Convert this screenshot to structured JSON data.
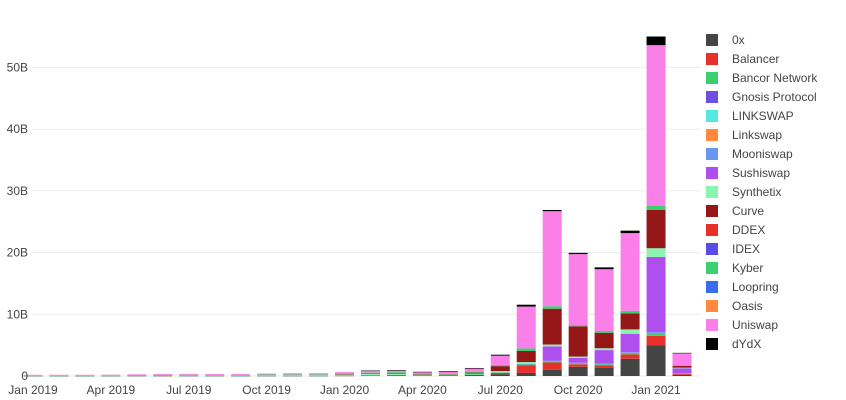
{
  "chart_data": {
    "type": "bar",
    "stacked": true,
    "title": "",
    "xlabel": "",
    "ylabel": "",
    "ylim": [
      0,
      58
    ],
    "y_unit": "B",
    "yticks": [
      0,
      10,
      20,
      30,
      40,
      50
    ],
    "ytick_labels": [
      "0",
      "10B",
      "20B",
      "30B",
      "40B",
      "50B"
    ],
    "xtick_labels": [
      {
        "category": "2019-01",
        "label": "Jan 2019"
      },
      {
        "category": "2019-04",
        "label": "Apr 2019"
      },
      {
        "category": "2019-07",
        "label": "Jul 2019"
      },
      {
        "category": "2019-10",
        "label": "Oct 2019"
      },
      {
        "category": "2020-01",
        "label": "Jan 2020"
      },
      {
        "category": "2020-04",
        "label": "Apr 2020"
      },
      {
        "category": "2020-07",
        "label": "Jul 2020"
      },
      {
        "category": "2020-10",
        "label": "Oct 2020"
      },
      {
        "category": "2021-01",
        "label": "Jan 2021"
      }
    ],
    "grid": true,
    "legend_position": "right",
    "categories": [
      "2019-01",
      "2019-02",
      "2019-03",
      "2019-04",
      "2019-05",
      "2019-06",
      "2019-07",
      "2019-08",
      "2019-09",
      "2019-10",
      "2019-11",
      "2019-12",
      "2020-01",
      "2020-02",
      "2020-03",
      "2020-04",
      "2020-05",
      "2020-06",
      "2020-07",
      "2020-08",
      "2020-09",
      "2020-10",
      "2020-11",
      "2020-12",
      "2021-01",
      "2021-02"
    ],
    "series": [
      {
        "name": "0x",
        "color": "#444444",
        "values": [
          0.02,
          0.02,
          0.02,
          0.02,
          0.03,
          0.03,
          0.03,
          0.02,
          0.02,
          0.03,
          0.03,
          0.03,
          0.05,
          0.08,
          0.1,
          0.08,
          0.1,
          0.15,
          0.3,
          0.5,
          1.0,
          1.5,
          1.3,
          2.8,
          5.0,
          0.2
        ]
      },
      {
        "name": "Balancer",
        "color": "#e8302b",
        "values": [
          0,
          0,
          0,
          0,
          0,
          0,
          0,
          0,
          0,
          0,
          0,
          0,
          0,
          0,
          0,
          0,
          0,
          0.05,
          0.2,
          1.2,
          1.2,
          0.4,
          0.4,
          0.7,
          1.5,
          0.15
        ]
      },
      {
        "name": "Bancor Network",
        "color": "#3ccf6f",
        "values": [
          0.03,
          0.03,
          0.03,
          0.03,
          0.04,
          0.04,
          0.04,
          0.03,
          0.03,
          0.03,
          0.03,
          0.03,
          0.04,
          0.05,
          0.08,
          0.05,
          0.05,
          0.05,
          0.1,
          0.2,
          0.2,
          0.15,
          0.2,
          0.25,
          0.4,
          0.05
        ]
      },
      {
        "name": "Gnosis Protocol",
        "color": "#6a4fe0",
        "values": [
          0,
          0,
          0,
          0,
          0,
          0,
          0,
          0,
          0,
          0,
          0,
          0,
          0,
          0,
          0,
          0,
          0,
          0,
          0,
          0,
          0,
          0,
          0,
          0,
          0,
          0
        ]
      },
      {
        "name": "LINKSWAP",
        "color": "#56e8e0",
        "values": [
          0,
          0,
          0,
          0,
          0,
          0,
          0,
          0,
          0,
          0,
          0,
          0,
          0,
          0,
          0,
          0,
          0,
          0,
          0,
          0,
          0,
          0,
          0,
          0,
          0,
          0
        ]
      },
      {
        "name": "Linkswap",
        "color": "#ff8a3d",
        "values": [
          0,
          0,
          0,
          0,
          0,
          0,
          0,
          0,
          0,
          0,
          0,
          0,
          0,
          0,
          0,
          0,
          0,
          0,
          0,
          0,
          0,
          0,
          0,
          0,
          0,
          0
        ]
      },
      {
        "name": "Mooniswap",
        "color": "#6a96f0",
        "values": [
          0,
          0,
          0,
          0,
          0,
          0,
          0,
          0,
          0,
          0,
          0,
          0,
          0,
          0,
          0,
          0,
          0,
          0,
          0,
          0.05,
          0.1,
          0.1,
          0.1,
          0.1,
          0.2,
          0.05
        ]
      },
      {
        "name": "Sushiswap",
        "color": "#b04ff0",
        "values": [
          0,
          0,
          0,
          0,
          0,
          0,
          0,
          0,
          0,
          0,
          0,
          0,
          0,
          0,
          0,
          0,
          0,
          0,
          0,
          0,
          2.3,
          0.8,
          2.2,
          3.0,
          12.2,
          0.8
        ]
      },
      {
        "name": "Synthetix",
        "color": "#8af5b0",
        "values": [
          0.05,
          0.05,
          0.05,
          0.05,
          0.08,
          0.08,
          0.1,
          0.1,
          0.1,
          0.15,
          0.15,
          0.15,
          0.2,
          0.25,
          0.2,
          0.15,
          0.15,
          0.15,
          0.2,
          0.3,
          0.3,
          0.2,
          0.3,
          0.7,
          1.4,
          0.1
        ]
      },
      {
        "name": "Curve",
        "color": "#951717",
        "values": [
          0,
          0,
          0,
          0,
          0,
          0,
          0,
          0,
          0,
          0,
          0,
          0,
          0.02,
          0.05,
          0.1,
          0.05,
          0.05,
          0.15,
          0.8,
          1.8,
          5.8,
          4.9,
          2.5,
          2.6,
          6.2,
          0.3
        ]
      },
      {
        "name": "DDEX",
        "color": "#e8302b",
        "values": [
          0,
          0,
          0,
          0,
          0,
          0,
          0,
          0,
          0,
          0,
          0,
          0,
          0,
          0,
          0,
          0,
          0,
          0,
          0,
          0,
          0,
          0,
          0,
          0,
          0,
          0
        ]
      },
      {
        "name": "IDEX",
        "color": "#5b4ce8",
        "values": [
          0,
          0,
          0,
          0,
          0,
          0,
          0,
          0,
          0,
          0,
          0,
          0,
          0,
          0,
          0,
          0,
          0,
          0,
          0,
          0,
          0,
          0,
          0,
          0,
          0,
          0
        ]
      },
      {
        "name": "Kyber",
        "color": "#3ccf6f",
        "values": [
          0.02,
          0.02,
          0.02,
          0.02,
          0.03,
          0.03,
          0.03,
          0.03,
          0.03,
          0.03,
          0.04,
          0.04,
          0.08,
          0.1,
          0.12,
          0.1,
          0.1,
          0.15,
          0.2,
          0.4,
          0.4,
          0.2,
          0.3,
          0.4,
          0.7,
          0.05
        ]
      },
      {
        "name": "Loopring",
        "color": "#3a6cf0",
        "values": [
          0,
          0,
          0,
          0,
          0,
          0,
          0,
          0,
          0,
          0,
          0,
          0,
          0,
          0,
          0,
          0,
          0,
          0,
          0,
          0,
          0,
          0,
          0,
          0,
          0,
          0
        ]
      },
      {
        "name": "Oasis",
        "color": "#ff8a3d",
        "values": [
          0,
          0,
          0,
          0,
          0,
          0,
          0,
          0,
          0,
          0,
          0,
          0,
          0,
          0,
          0,
          0,
          0,
          0,
          0,
          0,
          0,
          0,
          0,
          0,
          0,
          0
        ]
      },
      {
        "name": "Uniswap",
        "color": "#fb7fe8",
        "values": [
          0.08,
          0.08,
          0.08,
          0.1,
          0.1,
          0.15,
          0.15,
          0.15,
          0.15,
          0.15,
          0.2,
          0.2,
          0.25,
          0.3,
          0.25,
          0.2,
          0.25,
          0.5,
          1.5,
          6.8,
          15.4,
          11.5,
          10.0,
          12.6,
          26.0,
          2.0
        ]
      },
      {
        "name": "dYdX",
        "color": "#000000",
        "values": [
          0,
          0,
          0,
          0,
          0,
          0,
          0,
          0,
          0,
          0,
          0,
          0,
          0,
          0.05,
          0.1,
          0.05,
          0.1,
          0.1,
          0.15,
          0.3,
          0.2,
          0.2,
          0.3,
          0.4,
          1.4,
          0.05
        ]
      }
    ]
  }
}
